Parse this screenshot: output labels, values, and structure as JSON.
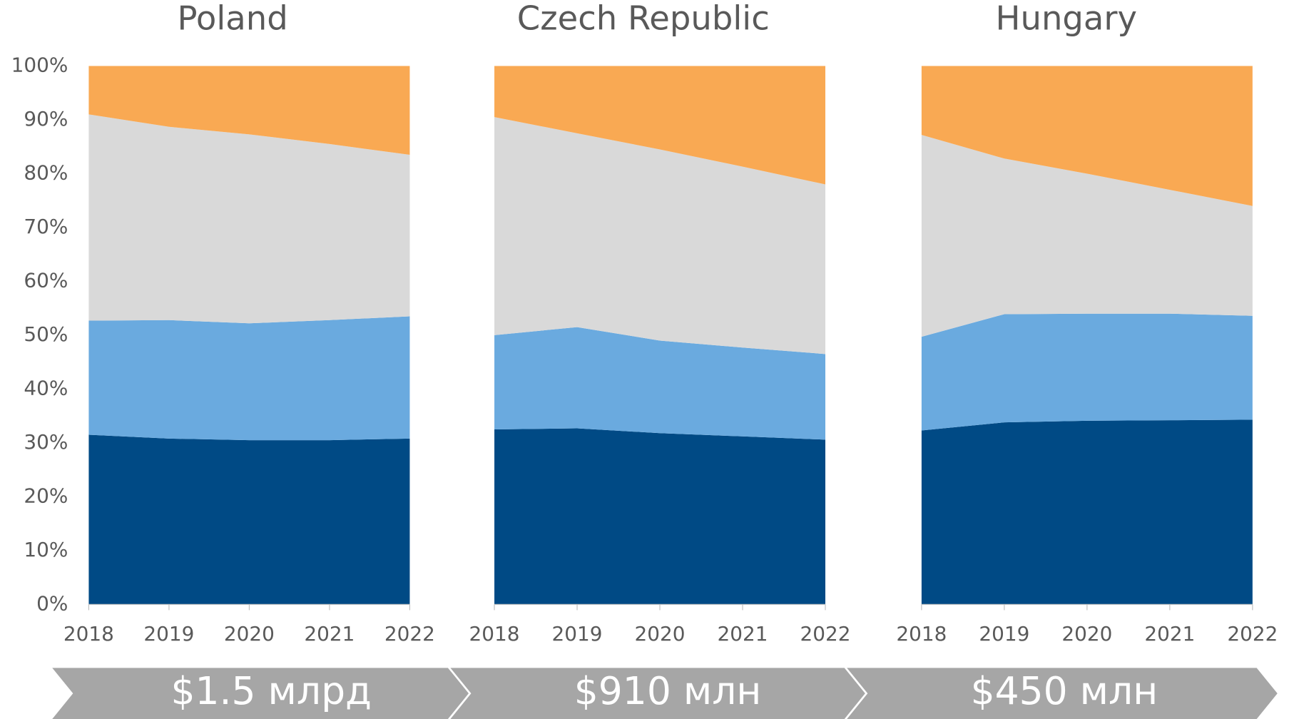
{
  "chart_data": [
    {
      "type": "area",
      "title": "Poland",
      "categories": [
        "2018",
        "2019",
        "2020",
        "2021",
        "2022"
      ],
      "series": [
        {
          "color": "#004a85",
          "values": [
            31.5,
            30.8,
            30.5,
            30.5,
            30.8
          ]
        },
        {
          "color": "#6aaadf",
          "values": [
            21.2,
            22.0,
            21.7,
            22.3,
            22.7
          ]
        },
        {
          "color": "#d9d9d9",
          "values": [
            38.3,
            35.9,
            35.1,
            32.7,
            30.0
          ]
        },
        {
          "color": "#f9a953",
          "values": [
            9.0,
            11.3,
            12.7,
            14.5,
            16.5
          ]
        }
      ],
      "ylim": [
        0,
        100
      ],
      "yticks": [
        {
          "value": 0,
          "label": "0%"
        },
        {
          "value": 10,
          "label": "10%"
        },
        {
          "value": 20,
          "label": "20%"
        },
        {
          "value": 30,
          "label": "30%"
        },
        {
          "value": 40,
          "label": "40%"
        },
        {
          "value": 50,
          "label": "50%"
        },
        {
          "value": 60,
          "label": "60%"
        },
        {
          "value": 70,
          "label": "70%"
        },
        {
          "value": 80,
          "label": "80%"
        },
        {
          "value": 90,
          "label": "90%"
        },
        {
          "value": 100,
          "label": "100%"
        }
      ]
    },
    {
      "type": "area",
      "title": "Czech Republic",
      "categories": [
        "2018",
        "2019",
        "2020",
        "2021",
        "2022"
      ],
      "series": [
        {
          "color": "#004a85",
          "values": [
            32.5,
            32.7,
            31.8,
            31.2,
            30.6
          ]
        },
        {
          "color": "#6aaadf",
          "values": [
            17.5,
            18.8,
            17.2,
            16.5,
            15.9
          ]
        },
        {
          "color": "#d9d9d9",
          "values": [
            40.5,
            36.0,
            35.5,
            33.6,
            31.5
          ]
        },
        {
          "color": "#f9a953",
          "values": [
            9.5,
            12.5,
            15.5,
            18.7,
            22.0
          ]
        }
      ],
      "ylim": [
        0,
        100
      ]
    },
    {
      "type": "area",
      "title": "Hungary",
      "categories": [
        "2018",
        "2019",
        "2020",
        "2021",
        "2022"
      ],
      "series": [
        {
          "color": "#004a85",
          "values": [
            32.3,
            33.8,
            34.1,
            34.2,
            34.3
          ]
        },
        {
          "color": "#6aaadf",
          "values": [
            17.4,
            20.1,
            19.9,
            19.8,
            19.3
          ]
        },
        {
          "color": "#d9d9d9",
          "values": [
            37.5,
            28.9,
            26.0,
            23.0,
            20.4
          ]
        },
        {
          "color": "#f9a953",
          "values": [
            12.8,
            17.2,
            20.0,
            23.0,
            26.0
          ]
        }
      ],
      "ylim": [
        0,
        100
      ]
    }
  ],
  "banners": [
    "$1.5 млрд",
    "$910 млн",
    "$450 млн"
  ]
}
